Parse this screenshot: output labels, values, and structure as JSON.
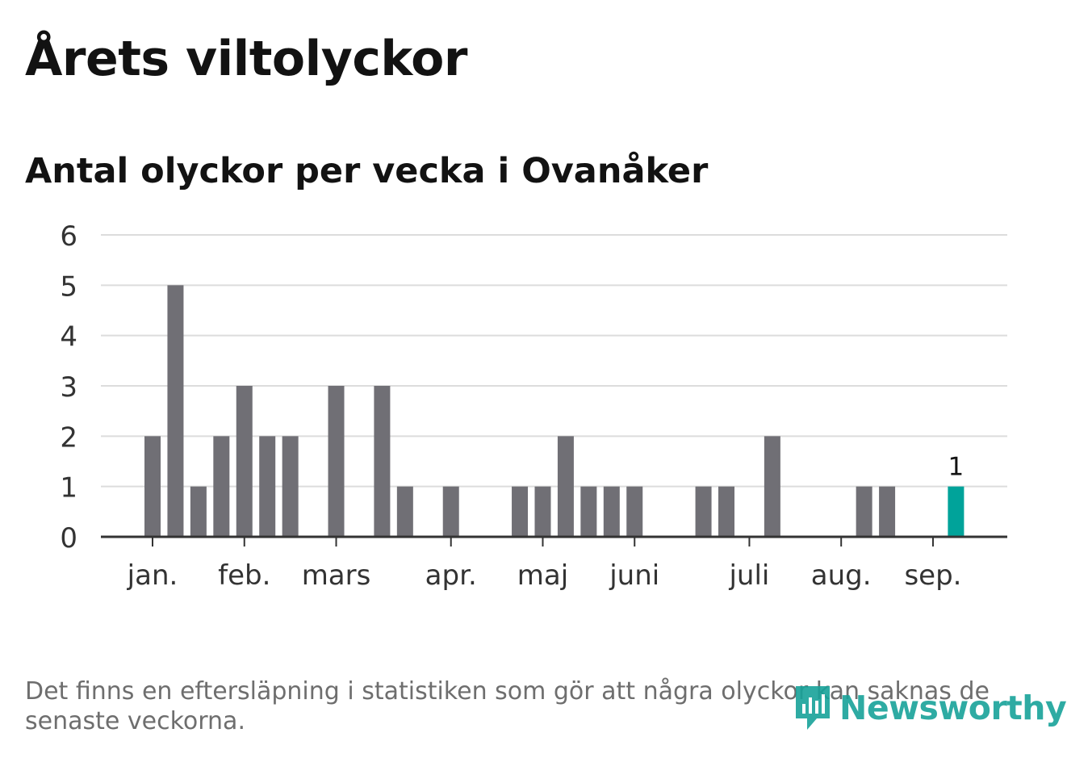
{
  "header": {
    "title": "Årets viltolyckor"
  },
  "chart_data": {
    "type": "bar",
    "subtitle": "Antal olyckor per vecka i Ovanåker",
    "x": [
      1,
      2,
      3,
      4,
      5,
      6,
      7,
      8,
      9,
      10,
      11,
      12,
      13,
      14,
      15,
      16,
      17,
      18,
      19,
      20,
      21,
      22,
      23,
      24,
      25,
      26,
      27,
      28,
      29,
      30,
      31,
      32,
      33,
      34,
      35,
      36,
      37,
      38
    ],
    "values": [
      2,
      5,
      1,
      2,
      3,
      2,
      2,
      0,
      3,
      0,
      3,
      1,
      0,
      1,
      0,
      0,
      1,
      1,
      2,
      1,
      1,
      1,
      0,
      0,
      1,
      1,
      0,
      2,
      0,
      0,
      0,
      1,
      1,
      0,
      0,
      1,
      0,
      0
    ],
    "highlight_index": 35,
    "highlight_label": "1",
    "month_labels": [
      {
        "label": "jan.",
        "at": 1
      },
      {
        "label": "feb.",
        "at": 5
      },
      {
        "label": "mars",
        "at": 9
      },
      {
        "label": "apr.",
        "at": 14
      },
      {
        "label": "maj",
        "at": 18
      },
      {
        "label": "juni",
        "at": 22
      },
      {
        "label": "juli",
        "at": 27
      },
      {
        "label": "aug.",
        "at": 31
      },
      {
        "label": "sep.",
        "at": 35
      }
    ],
    "yticks": [
      "0",
      "1",
      "2",
      "3",
      "4",
      "5",
      "6"
    ],
    "ylim": [
      0,
      6
    ],
    "grid": true,
    "colors": {
      "bar": "#706f75",
      "highlight": "#00a39a",
      "grid": "#dcdcdc",
      "axis": "#333333"
    }
  },
  "footnote": "Det finns en eftersläpning i statistiken som gör att några olyckor kan saknas de senaste veckorna.",
  "brand": {
    "name": "Newsworthy",
    "icon": "newsworthy-logo-icon",
    "color": "#18a39a"
  }
}
